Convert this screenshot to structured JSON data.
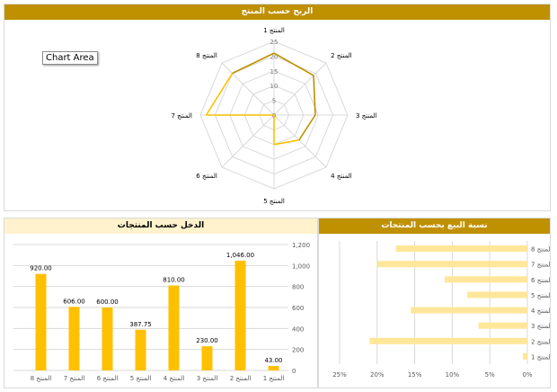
{
  "tooltip": "Chart Area",
  "chart_data": [
    {
      "type": "radar",
      "title": "الربح حسب المنتج",
      "categories": [
        "المنتج 1",
        "المنتج 2",
        "المنتج 3",
        "المنتج 4",
        "المنتج 5",
        "المنتج 6",
        "المنتج 7",
        "المنتج 8"
      ],
      "values": [
        21,
        19,
        14,
        12,
        10,
        0,
        23,
        20
      ],
      "ticks": [
        0,
        5,
        10,
        15,
        20,
        25
      ],
      "rmax": 25,
      "colors": {
        "line": "#bf9000",
        "line_highlight": "#ffc000",
        "grid": "#d9d9d9"
      }
    },
    {
      "type": "bar",
      "title": "الدخل حسب المنتجات",
      "categories": [
        "المنتج 8",
        "المنتج 7",
        "المنتج 6",
        "المنتج 5",
        "المنتج 4",
        "المنتج 3",
        "المنتج 2",
        "المنتج 1"
      ],
      "values": [
        920,
        606,
        600,
        387.75,
        810,
        230,
        1046,
        43
      ],
      "data_labels": [
        "920.00",
        "606.00",
        "600.00",
        "387.75",
        "810.00",
        "230.00",
        "1,046.00",
        "43.00"
      ],
      "ylim": [
        0,
        1200
      ],
      "ticks": [
        "0",
        "200",
        "400",
        "600",
        "800",
        "1,000",
        "1,200"
      ],
      "colors": {
        "bar": "#ffc000"
      }
    },
    {
      "type": "bar",
      "orientation": "horizontal",
      "title": "نسبة البيع بحسب المنتجات",
      "categories": [
        "المنتج 1",
        "المنتج 2",
        "المنتج 3",
        "المنتج 4",
        "المنتج 5",
        "المنتج 6",
        "المنتج 7",
        "المنتج 8"
      ],
      "values": [
        0.6,
        21,
        6.5,
        15.5,
        8,
        11,
        20,
        17.5
      ],
      "xlim": [
        0,
        25
      ],
      "ticks": [
        "0%",
        "5%",
        "10%",
        "15%",
        "20%",
        "25%"
      ],
      "colors": {
        "bar": "#ffe699"
      }
    }
  ]
}
